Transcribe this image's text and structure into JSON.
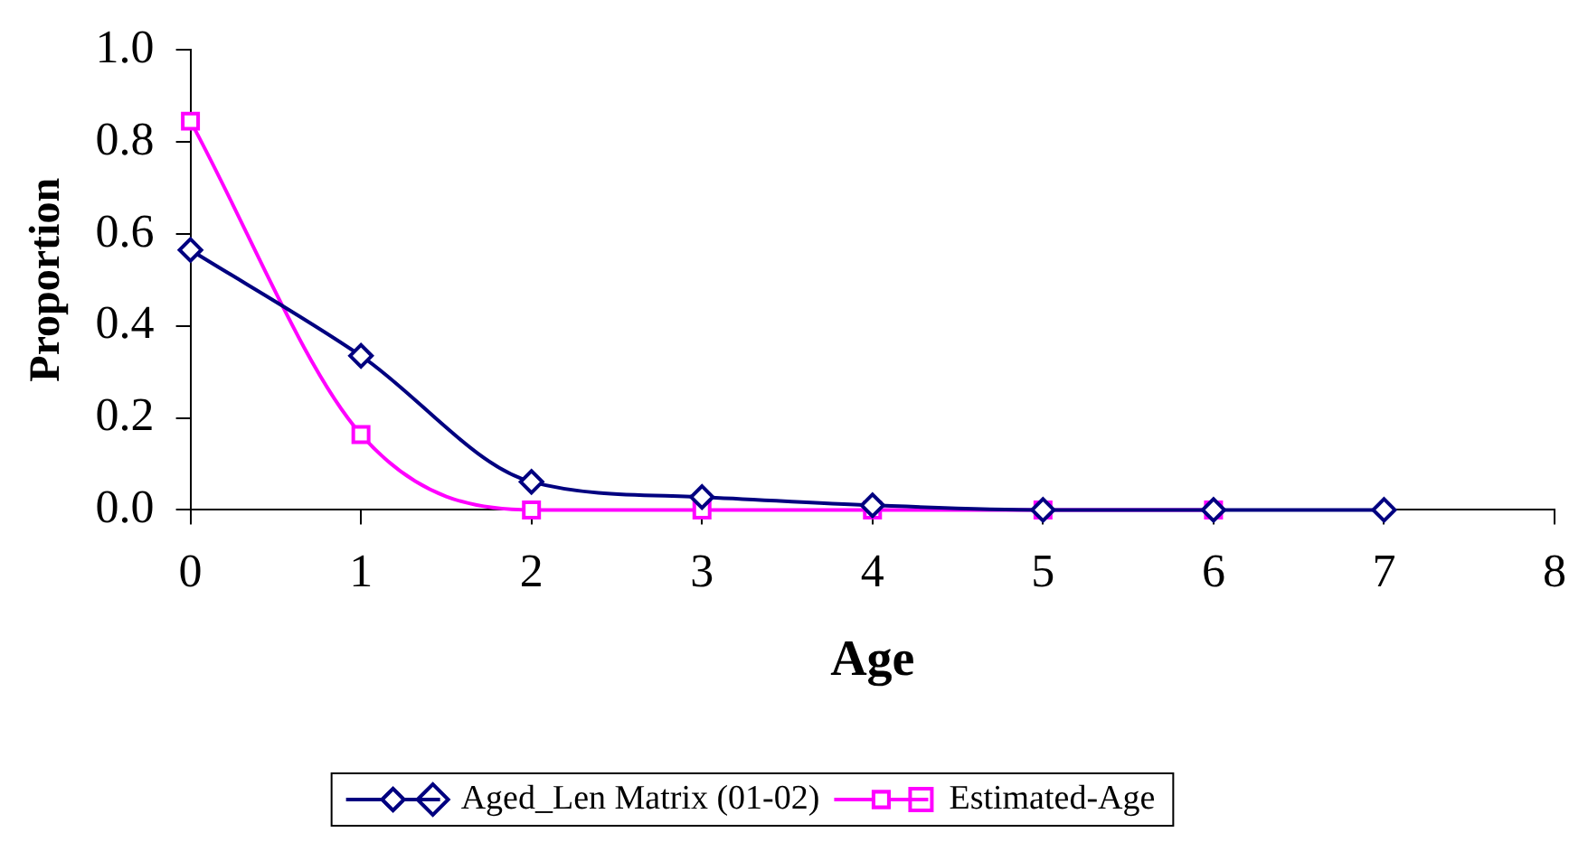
{
  "chart_data": {
    "type": "line",
    "xlabel": "Age",
    "ylabel": "Proportion",
    "xlim": [
      0,
      8
    ],
    "xticks": [
      0,
      1,
      2,
      3,
      4,
      5,
      6,
      7,
      8
    ],
    "ylim": [
      0,
      1
    ],
    "yticks": [
      {
        "value": 0,
        "label": "0.0"
      },
      {
        "value": 0.2,
        "label": "0.2"
      },
      {
        "value": 0.4,
        "label": "0.4"
      },
      {
        "value": 0.6,
        "label": "0.6"
      },
      {
        "value": 0.8,
        "label": "0.8"
      },
      {
        "value": 1,
        "label": "1.0"
      }
    ],
    "grid": false,
    "legend": "bottom",
    "series": [
      {
        "name": "Aged_Len Matrix (01-02)",
        "color": "#000080",
        "marker": "diamond",
        "x": [
          0,
          1,
          2,
          3,
          4,
          5,
          6,
          7
        ],
        "values": [
          0.565,
          0.335,
          0.061,
          0.028,
          0.01,
          0,
          0,
          0
        ]
      },
      {
        "name": "Estimated-Age",
        "color": "#ff00ff",
        "marker": "square",
        "x": [
          0,
          1,
          2,
          3,
          4,
          5,
          6
        ],
        "values": [
          0.845,
          0.164,
          0,
          0,
          0,
          0,
          0
        ]
      }
    ]
  }
}
